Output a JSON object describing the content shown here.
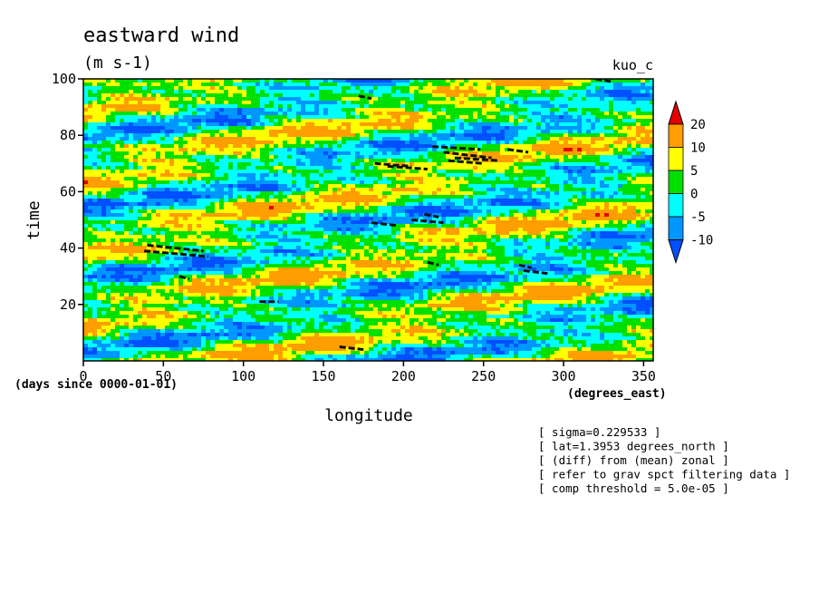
{
  "chart_data": {
    "type": "heatmap",
    "title": "eastward wind",
    "units": "(m s-1)",
    "run_label": "kuo_c",
    "xlabel": "longitude",
    "x_units": "(degrees_east)",
    "ylabel": "time",
    "y_units": "(days since 0000-01-01)",
    "xlim": [
      0,
      356
    ],
    "ylim": [
      0,
      100
    ],
    "x_ticks": [
      0,
      50,
      100,
      150,
      200,
      250,
      300,
      350
    ],
    "y_ticks": [
      20,
      40,
      60,
      80,
      100
    ],
    "grid": false,
    "colorbar": {
      "levels": [
        "20",
        "10",
        "5",
        "0",
        "-5",
        "-10"
      ],
      "colors": [
        "#e60000",
        "#ff9e00",
        "#ffff00",
        "#00e000",
        "#00ffff",
        "#0096ff",
        "#0050ff"
      ]
    },
    "annotations": [
      "[ sigma=0.229533 ]",
      "[ lat=1.3953 degrees_north ]",
      "[ (diff) from (mean) zonal ]",
      "[ refer to grav spct filtering data ]",
      "[ comp threshold = 5.0e-05 ]"
    ]
  }
}
